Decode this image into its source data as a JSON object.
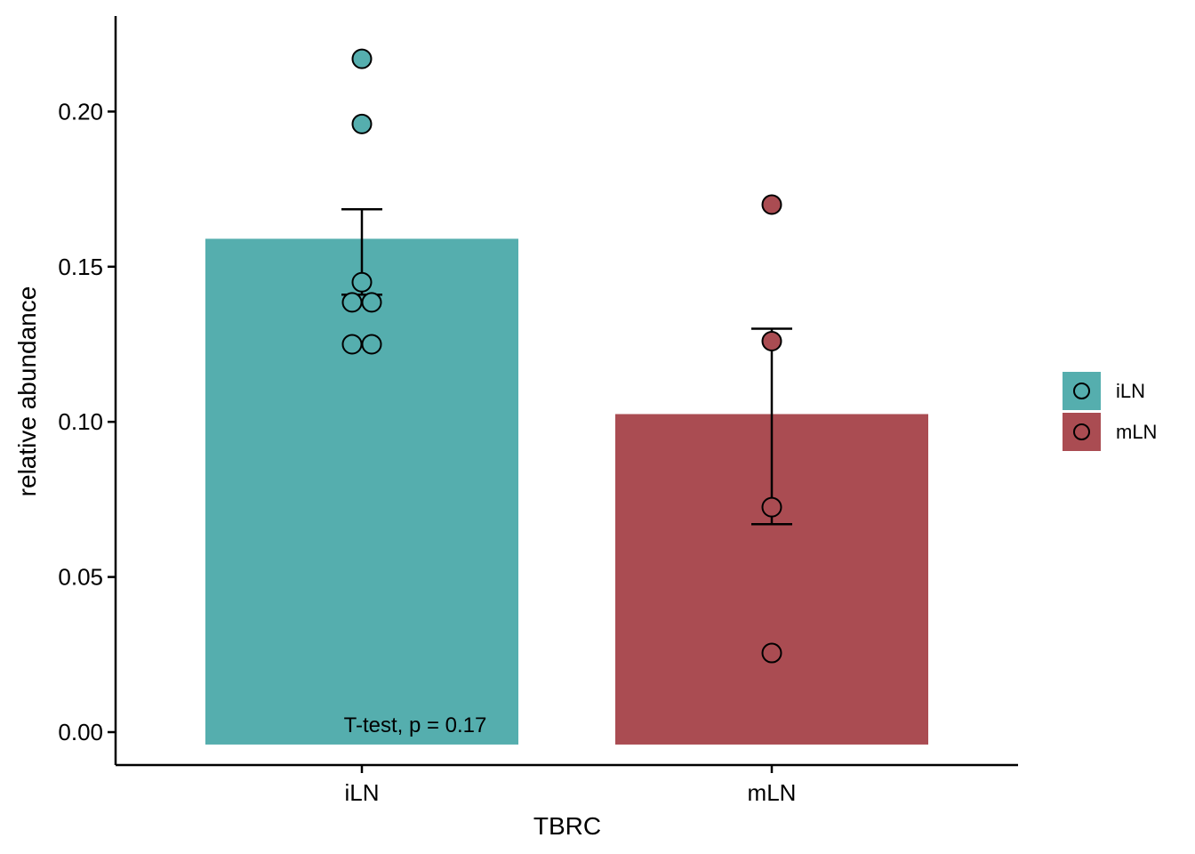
{
  "chart_data": {
    "type": "bar",
    "categories": [
      "iLN",
      "mLN"
    ],
    "values": [
      0.159,
      0.1025
    ],
    "error_bars": [
      {
        "low": 0.141,
        "high": 0.1685
      },
      {
        "low": 0.067,
        "high": 0.13
      }
    ],
    "points": [
      {
        "category": "iLN",
        "y": 0.217
      },
      {
        "category": "iLN",
        "y": 0.196
      },
      {
        "category": "iLN",
        "y": 0.145
      },
      {
        "category": "iLN",
        "y": 0.1385
      },
      {
        "category": "iLN",
        "y": 0.1385
      },
      {
        "category": "iLN",
        "y": 0.125
      },
      {
        "category": "iLN",
        "y": 0.125
      },
      {
        "category": "mLN",
        "y": 0.17
      },
      {
        "category": "mLN",
        "y": 0.126
      },
      {
        "category": "mLN",
        "y": 0.0725
      },
      {
        "category": "mLN",
        "y": 0.0255
      }
    ],
    "xlabel": "TBRC",
    "ylabel": "relative abundance",
    "ylim": [
      -0.01,
      0.23
    ],
    "yticks": [
      0.0,
      0.05,
      0.1,
      0.15,
      0.2
    ],
    "ytick_labels": [
      "0.00",
      "0.05",
      "0.10",
      "0.15",
      "0.20"
    ],
    "annotation": "T-test, p = 0.17",
    "legend": {
      "position": "right",
      "entries": [
        {
          "label": "iLN",
          "color": "#55AEAE"
        },
        {
          "label": "mLN",
          "color": "#AA4C52"
        }
      ]
    },
    "colors": {
      "iLN": "#55AEAE",
      "mLN": "#AA4C52"
    },
    "grid": false
  }
}
